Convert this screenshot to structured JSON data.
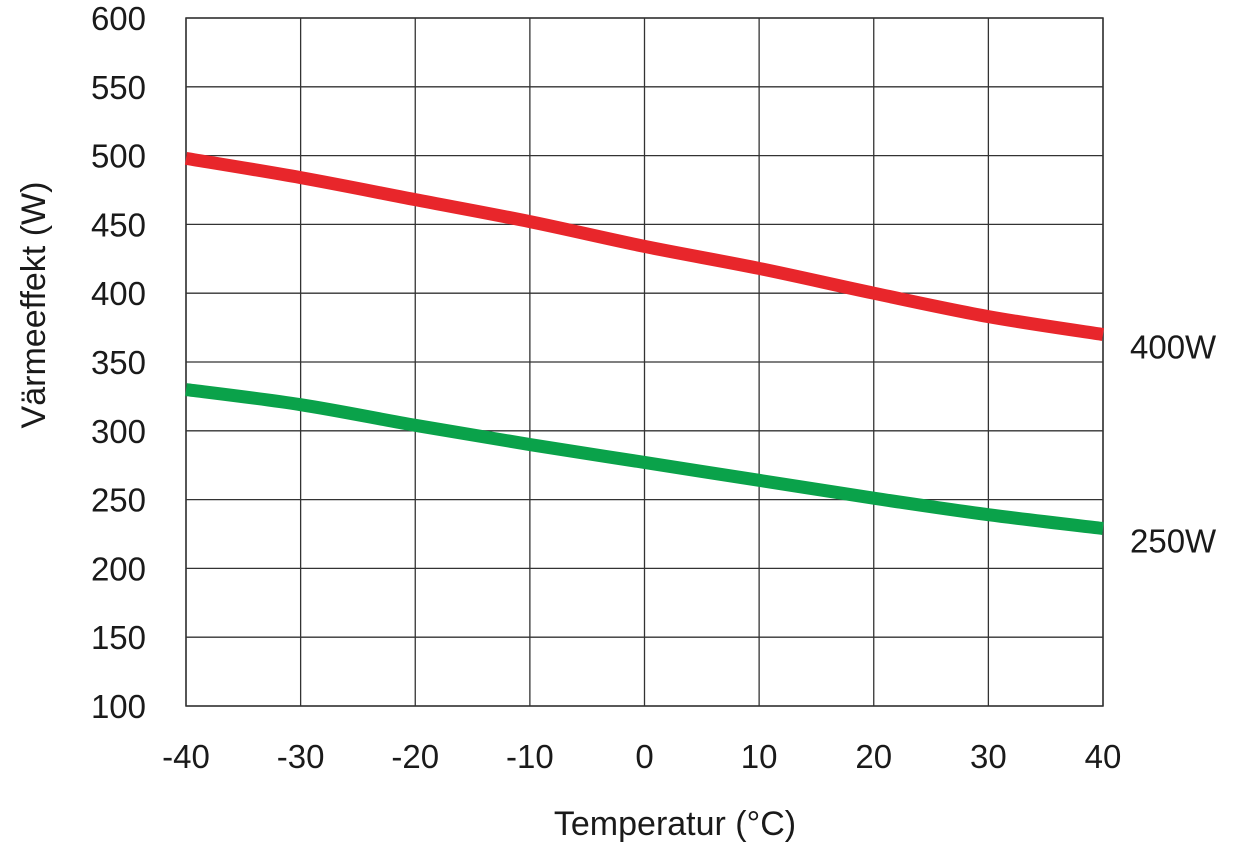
{
  "chart_data": {
    "type": "line",
    "title": "",
    "xlabel": "Temperatur (°C)",
    "ylabel": "Värmeeffekt (W)",
    "xlim": [
      -40,
      40
    ],
    "ylim": [
      100,
      600
    ],
    "xticks": [
      "-40",
      "-30",
      "-20",
      "-10",
      "0",
      "10",
      "20",
      "30",
      "40"
    ],
    "yticks": [
      "100",
      "150",
      "200",
      "250",
      "300",
      "350",
      "400",
      "450",
      "500",
      "550",
      "600"
    ],
    "grid": true,
    "x": [
      -40,
      -30,
      -20,
      -10,
      0,
      10,
      20,
      30,
      40
    ],
    "series": [
      {
        "name": "400W",
        "color": "#e8262b",
        "values": [
          498,
          484,
          468,
          452,
          434,
          418,
          400,
          383,
          370
        ]
      },
      {
        "name": "250W",
        "color": "#0aa24a",
        "values": [
          330,
          319,
          304,
          290,
          277,
          264,
          251,
          239,
          229
        ]
      }
    ]
  }
}
